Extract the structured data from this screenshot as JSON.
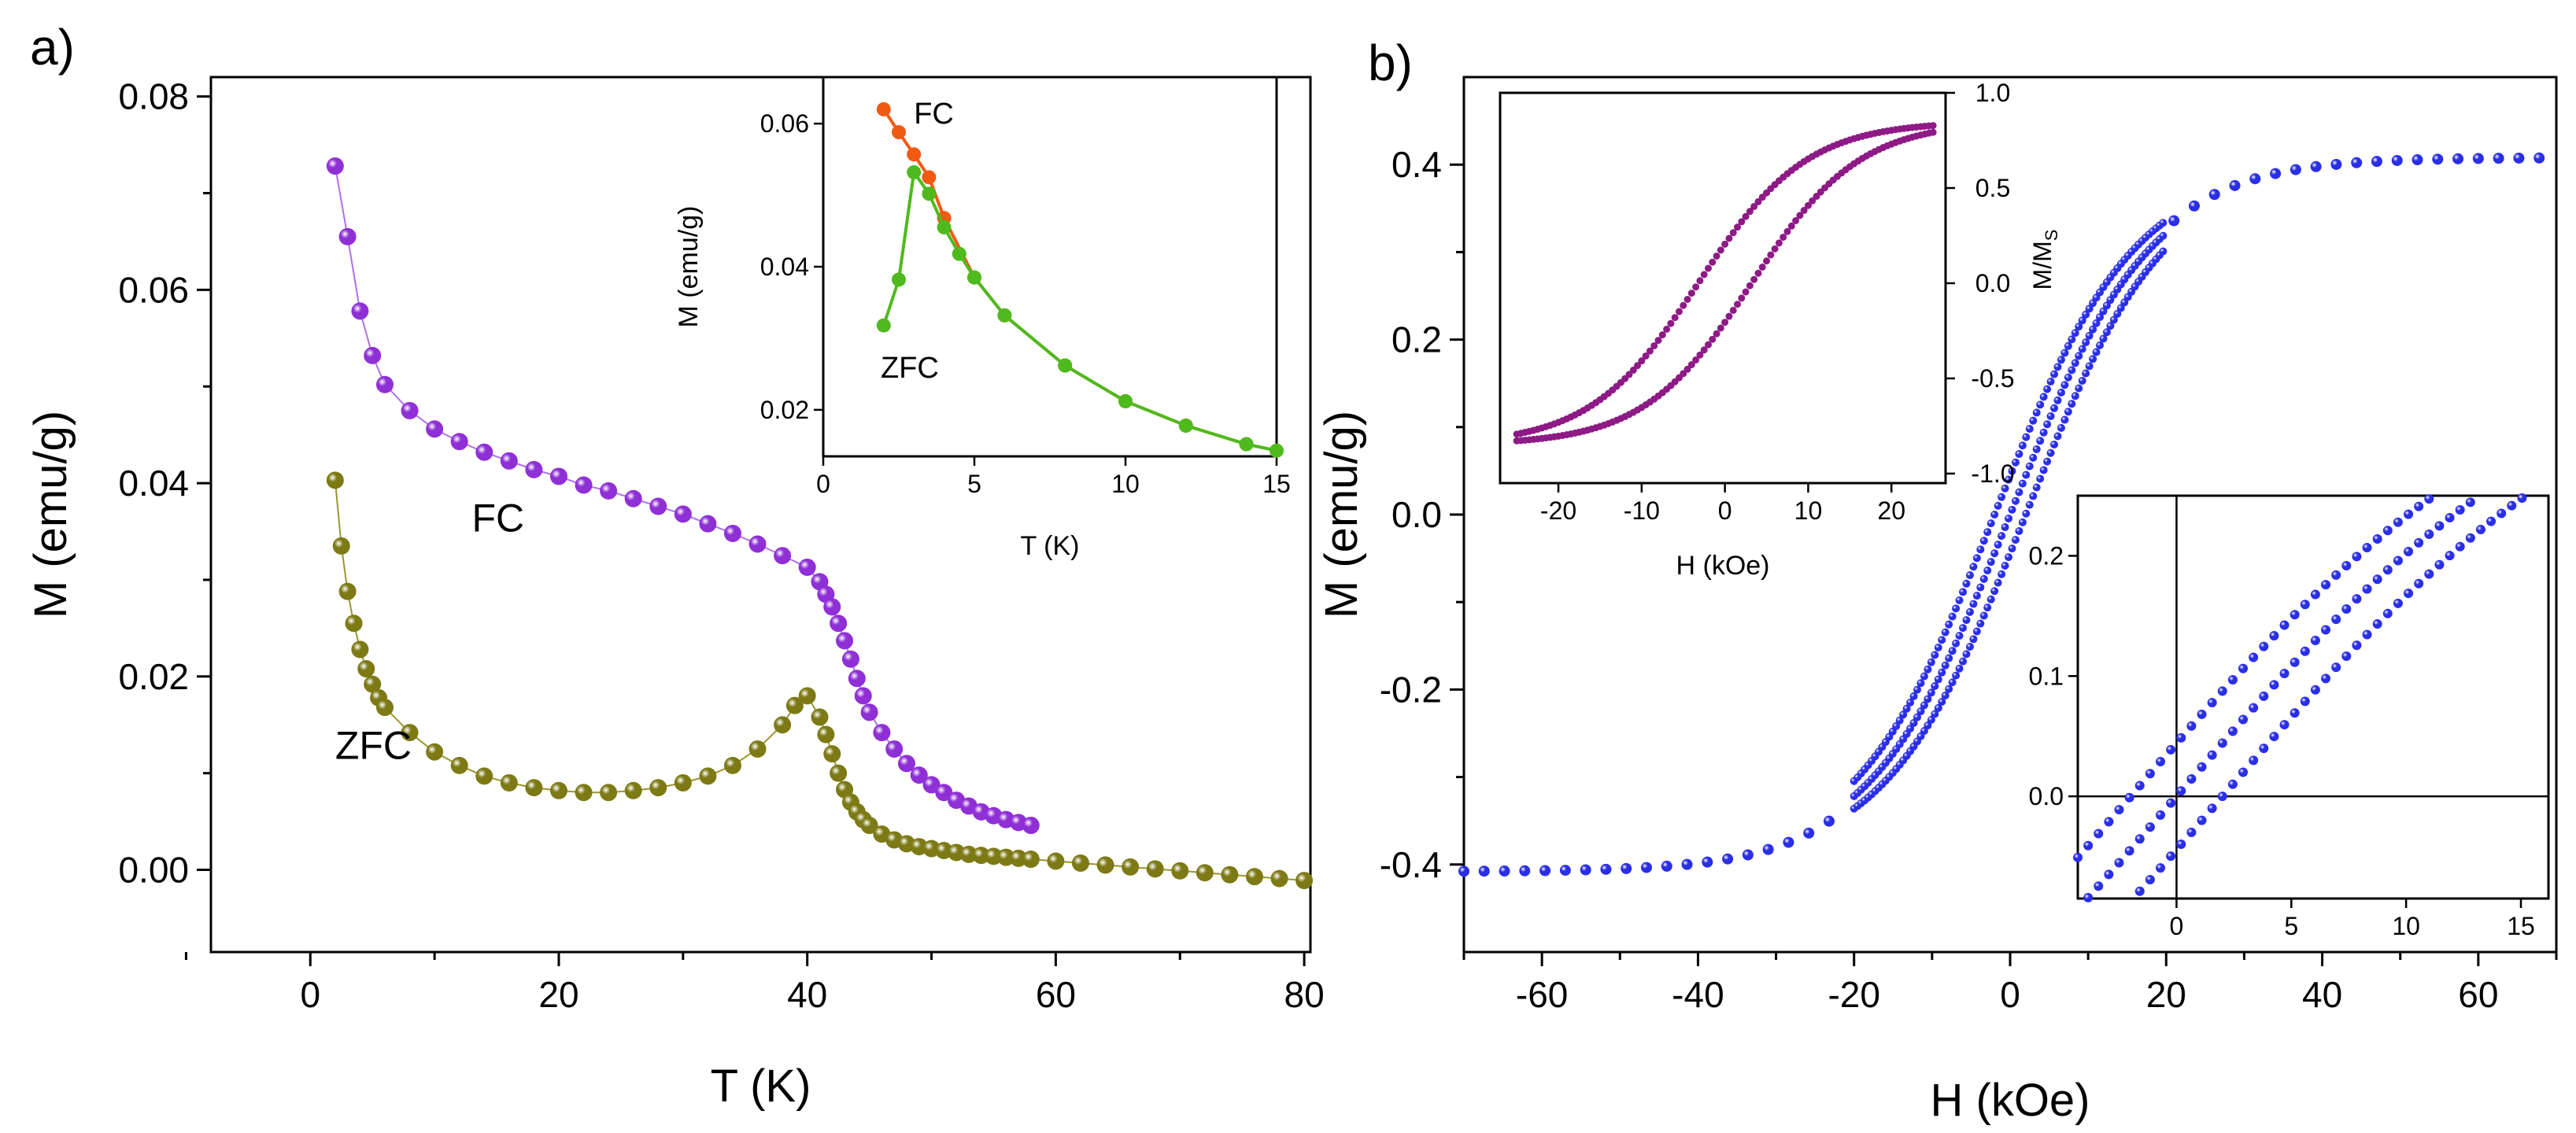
{
  "figure": {
    "panel_a_label": "a)",
    "panel_b_label": "b)"
  },
  "chart_data": [
    {
      "id": "a_main",
      "type": "scatter",
      "xlabel": "T (K)",
      "ylabel": "M (emu/g)",
      "xlim": [
        -8,
        80.5
      ],
      "ylim": [
        -0.0085,
        0.082
      ],
      "xticks": [
        0,
        20,
        40,
        60,
        80
      ],
      "yticks": [
        0,
        0.02,
        0.04,
        0.06,
        0.08
      ],
      "ytick_labels": [
        "0.00",
        "0.02",
        "0.04",
        "0.06",
        "0.08"
      ],
      "series": [
        {
          "name": "FC",
          "label_at": [
            13,
            0.035
          ],
          "color": "#8f2fd6",
          "line_color": "#b070e8",
          "x": [
            2,
            3,
            4,
            5,
            6,
            8,
            10,
            12,
            14,
            16,
            18,
            20,
            22,
            24,
            26,
            28,
            30,
            32,
            34,
            36,
            38,
            40,
            41,
            41.5,
            42,
            42.5,
            43,
            43.5,
            44,
            44.5,
            45,
            46,
            47,
            48,
            49,
            50,
            51,
            52,
            53,
            54,
            55,
            56,
            57,
            58
          ],
          "y": [
            0.0728,
            0.0655,
            0.0578,
            0.0532,
            0.0502,
            0.0475,
            0.0456,
            0.0443,
            0.0432,
            0.0423,
            0.0414,
            0.0407,
            0.0398,
            0.0392,
            0.0384,
            0.0376,
            0.0368,
            0.0358,
            0.0348,
            0.0337,
            0.0325,
            0.0313,
            0.0298,
            0.0285,
            0.0272,
            0.0255,
            0.0237,
            0.0218,
            0.0198,
            0.018,
            0.0163,
            0.0142,
            0.0125,
            0.011,
            0.0098,
            0.0088,
            0.008,
            0.0072,
            0.0066,
            0.006,
            0.0056,
            0.0052,
            0.0049,
            0.0046
          ]
        },
        {
          "name": "ZFC",
          "label_at": [
            2,
            0.0115
          ],
          "color": "#7d7a16",
          "line_color": "#9a9630",
          "x": [
            2,
            2.5,
            3,
            3.5,
            4,
            4.5,
            5,
            5.5,
            6,
            8,
            10,
            12,
            14,
            16,
            18,
            20,
            22,
            24,
            26,
            28,
            30,
            32,
            34,
            36,
            38,
            39,
            40,
            41,
            41.5,
            42,
            42.5,
            43,
            43.5,
            44,
            44.5,
            45,
            46,
            47,
            48,
            49,
            50,
            51,
            52,
            53,
            54,
            55,
            56,
            57,
            58,
            60,
            62,
            64,
            66,
            68,
            70,
            72,
            74,
            76,
            78,
            80
          ],
          "y": [
            0.0403,
            0.0335,
            0.0288,
            0.0255,
            0.0228,
            0.0208,
            0.0192,
            0.0178,
            0.0168,
            0.0142,
            0.0122,
            0.0108,
            0.0097,
            0.009,
            0.0085,
            0.0082,
            0.008,
            0.008,
            0.0082,
            0.0085,
            0.009,
            0.0097,
            0.0108,
            0.0125,
            0.015,
            0.017,
            0.018,
            0.0158,
            0.014,
            0.012,
            0.01,
            0.0083,
            0.007,
            0.006,
            0.0052,
            0.0046,
            0.0037,
            0.0031,
            0.0027,
            0.0024,
            0.0022,
            0.002,
            0.0018,
            0.0016,
            0.0015,
            0.0014,
            0.0013,
            0.0012,
            0.0011,
            0.0009,
            0.0007,
            0.0005,
            0.0003,
            0.0001,
            -0.0001,
            -0.0003,
            -0.0005,
            -0.0007,
            -0.0009,
            -0.0011
          ]
        }
      ]
    },
    {
      "id": "a_inset",
      "type": "line",
      "xlabel": "T (K)",
      "ylabel": "M (emu/g)",
      "xlim": [
        0,
        15
      ],
      "ylim": [
        0.0135,
        0.0665
      ],
      "xticks": [
        0,
        5,
        10,
        15
      ],
      "yticks": [
        0.02,
        0.04,
        0.06
      ],
      "ytick_labels": [
        "0.02",
        "0.04",
        "0.06"
      ],
      "series": [
        {
          "name": "FC",
          "label_at": [
            3,
            0.06
          ],
          "color": "#f05a12",
          "x": [
            2,
            2.5,
            3,
            3.5,
            4,
            5,
            6,
            8,
            10,
            12,
            14,
            15
          ],
          "y": [
            0.062,
            0.0588,
            0.0557,
            0.0525,
            0.0468,
            0.0385,
            0.0332,
            0.0262,
            0.0212,
            0.0178,
            0.0152,
            0.0143
          ]
        },
        {
          "name": "ZFC",
          "label_at": [
            1.9,
            0.0245
          ],
          "color": "#4fba1e",
          "x": [
            2,
            2.5,
            3,
            3.5,
            4,
            4.5,
            5,
            6,
            8,
            10,
            12,
            14,
            15
          ],
          "y": [
            0.0318,
            0.0382,
            0.0532,
            0.0502,
            0.0455,
            0.0418,
            0.0385,
            0.0332,
            0.0262,
            0.0212,
            0.0178,
            0.0152,
            0.0143
          ]
        }
      ]
    },
    {
      "id": "b_main",
      "type": "scatter",
      "xlabel": "H (kOe)",
      "ylabel": "M (emu/g)",
      "xlim": [
        -70,
        70
      ],
      "ylim": [
        -0.5,
        0.5
      ],
      "xticks": [
        -60,
        -40,
        -20,
        0,
        20,
        40,
        60
      ],
      "yticks": [
        -0.4,
        -0.2,
        0,
        0.2,
        0.4
      ],
      "ytick_labels": [
        "-0.4",
        "-0.2",
        "0.0",
        "0.2",
        "0.4"
      ],
      "color": "#2a2ee6",
      "Ms": 0.4,
      "Hc": 2,
      "H_scale": 18,
      "description": "hysteresis loop, ascending and descending branches, M(H)=0.4*tanh((H±2)/18)-ish Langevin",
      "hysteresis_range": [
        -20,
        20
      ],
      "x_range": [
        -70,
        70
      ]
    },
    {
      "id": "b_inset_top",
      "type": "scatter",
      "xlabel": "H (kOe)",
      "ylabel": "M/M",
      "ylabel_sub": "S",
      "xlim": [
        -27,
        26.5
      ],
      "ylim": [
        -1.05,
        1.0
      ],
      "xticks": [
        -20,
        -10,
        0,
        10,
        20
      ],
      "yticks": [
        -1.0,
        -0.5,
        0.0,
        0.5,
        1.0
      ],
      "ytick_labels": [
        "-1.0",
        "-0.5",
        "0.0",
        "0.5",
        "1.0"
      ],
      "color": "#8e1a86",
      "x_range": [
        -25,
        25
      ]
    },
    {
      "id": "b_inset_bottom",
      "type": "scatter",
      "xlim": [
        -4.3,
        16.2
      ],
      "ylim": [
        -0.085,
        0.25
      ],
      "xticks": [
        0,
        5,
        10,
        15
      ],
      "yticks": [
        0,
        0.1,
        0.2
      ],
      "ytick_labels": [
        "0.0",
        "0.1",
        "0.2"
      ],
      "color": "#2a2ee6"
    }
  ]
}
